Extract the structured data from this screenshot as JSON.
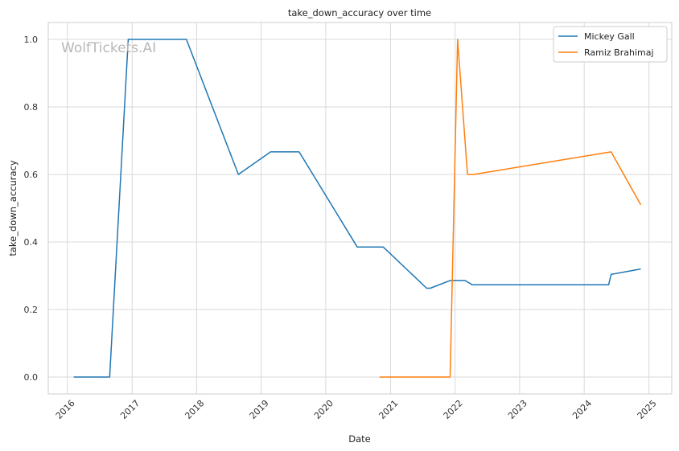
{
  "chart_data": {
    "type": "line",
    "title": "take_down_accuracy over time",
    "xlabel": "Date",
    "ylabel": "take_down_accuracy",
    "watermark": "WolfTickets.AI",
    "x_ticks": [
      "2016",
      "2017",
      "2018",
      "2019",
      "2020",
      "2021",
      "2022",
      "2023",
      "2024",
      "2025"
    ],
    "y_ticks": [
      "0.0",
      "0.2",
      "0.4",
      "0.6",
      "0.8",
      "1.0"
    ],
    "xlim": [
      "2015-09-15",
      "2025-05-10"
    ],
    "ylim": [
      -0.05,
      1.05
    ],
    "grid": true,
    "legend_position": "top-right",
    "series": [
      {
        "name": "Mickey Gall",
        "color": "#1f77b4",
        "points": [
          [
            "2016-02-06",
            0.0
          ],
          [
            "2016-08-27",
            0.0
          ],
          [
            "2016-12-10",
            1.0
          ],
          [
            "2017-11-04",
            1.0
          ],
          [
            "2018-08-25",
            0.6
          ],
          [
            "2019-02-23",
            0.667
          ],
          [
            "2019-08-03",
            0.667
          ],
          [
            "2020-06-27",
            0.385
          ],
          [
            "2020-11-21",
            0.385
          ],
          [
            "2021-07-24",
            0.263
          ],
          [
            "2021-08-14",
            0.263
          ],
          [
            "2021-12-04",
            0.286
          ],
          [
            "2022-02-26",
            0.286
          ],
          [
            "2022-04-09",
            0.273
          ],
          [
            "2024-05-18",
            0.273
          ],
          [
            "2024-06-01",
            0.304
          ],
          [
            "2024-11-16",
            0.32
          ]
        ]
      },
      {
        "name": "Ramiz Brahimaj",
        "color": "#ff7f0e",
        "points": [
          [
            "2020-10-31",
            0.0
          ],
          [
            "2021-12-04",
            0.0
          ],
          [
            "2022-01-15",
            1.0
          ],
          [
            "2022-03-12",
            0.6
          ],
          [
            "2022-04-16",
            0.6
          ],
          [
            "2024-06-01",
            0.667
          ],
          [
            "2024-11-16",
            0.51
          ]
        ]
      }
    ]
  }
}
